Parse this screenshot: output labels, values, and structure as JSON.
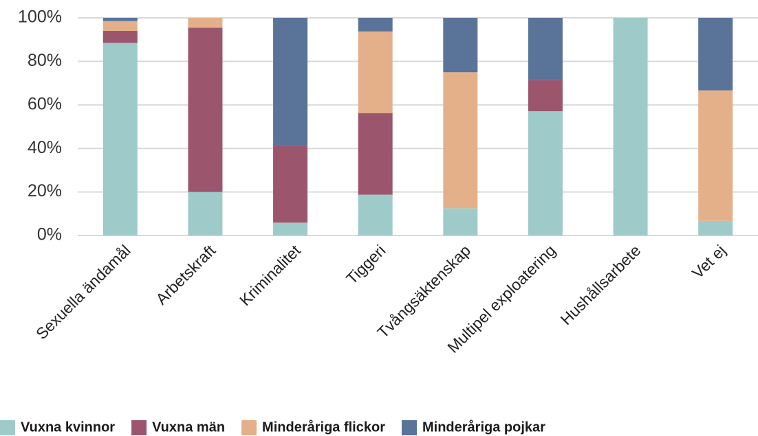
{
  "chart_data": {
    "type": "stacked_bar",
    "categories": [
      "Sexuella ändamål",
      "Arbetskraft",
      "Kriminalitet",
      "Tiggeri",
      "Tvångsäktenskap",
      "Multipel exploatering",
      "Hushållsarbete",
      "Vet ej"
    ],
    "series": [
      {
        "name": "Vuxna kvinnor",
        "color": "#9ecbca",
        "values": [
          88.5,
          20,
          5.9,
          18.75,
          12.5,
          57.1,
          100,
          6.7
        ]
      },
      {
        "name": "Vuxna män",
        "color": "#9b566e",
        "values": [
          5.5,
          75.5,
          35.3,
          37.5,
          0,
          14.3,
          0,
          0
        ]
      },
      {
        "name": "Minderåriga flickor",
        "color": "#e4b08a",
        "values": [
          4.5,
          4.5,
          0,
          37.5,
          62.5,
          0,
          0,
          60
        ]
      },
      {
        "name": "Minderåriga pojkar",
        "color": "#5a7399",
        "values": [
          1.5,
          0,
          58.8,
          6.25,
          25,
          28.6,
          0,
          33.3
        ]
      }
    ],
    "ylim": [
      0,
      100
    ],
    "yticks": [
      {
        "value": 0,
        "label": "0%"
      },
      {
        "value": 20,
        "label": "20%"
      },
      {
        "value": 40,
        "label": "40%"
      },
      {
        "value": 60,
        "label": "60%"
      },
      {
        "value": 80,
        "label": "80%"
      },
      {
        "value": 100,
        "label": "100%"
      }
    ],
    "grid": true
  }
}
